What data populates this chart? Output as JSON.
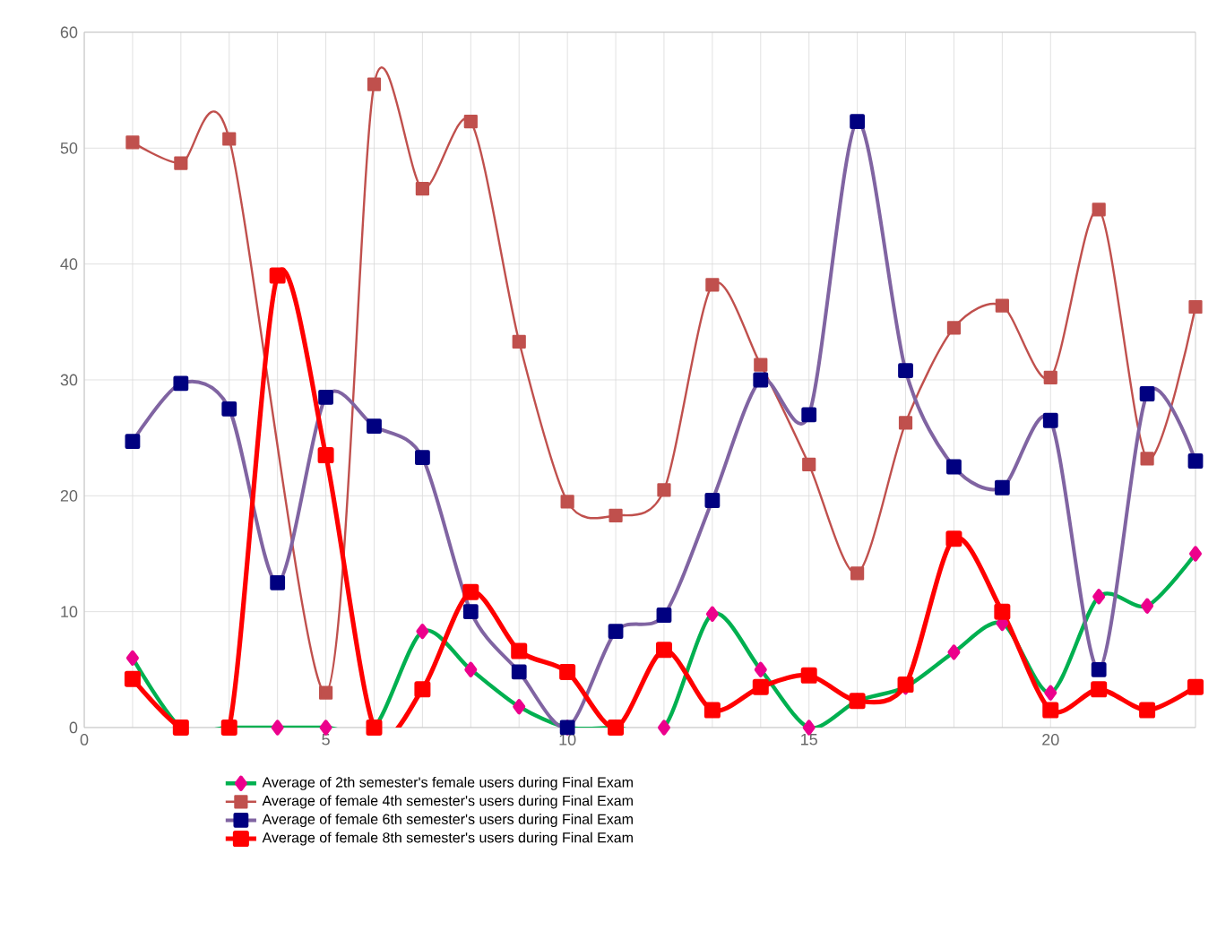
{
  "chart_data": {
    "type": "line",
    "x": [
      1,
      2,
      3,
      4,
      5,
      6,
      7,
      8,
      9,
      10,
      11,
      12,
      13,
      14,
      15,
      16,
      17,
      18,
      19,
      20,
      21,
      22,
      23
    ],
    "xlim": [
      0,
      23
    ],
    "xticks": [
      0,
      5,
      10,
      15,
      20
    ],
    "ylim": [
      0,
      60
    ],
    "yticks": [
      0,
      10,
      20,
      30,
      40,
      50,
      60
    ],
    "grid": true,
    "legend": "bottom",
    "line_style": "solid",
    "series": [
      {
        "name": "Average of 2th semester's  female users during Final Exam",
        "color": "#00b050",
        "marker": "diamond",
        "values": [
          6,
          0,
          0,
          0,
          0,
          0,
          8.3,
          5,
          1.8,
          0,
          0,
          0,
          9.8,
          5,
          0,
          2.3,
          3.5,
          6.5,
          9,
          3,
          11.3,
          10.5,
          15
        ]
      },
      {
        "name": "Average of female 4th semester's users during Final Exam",
        "color": "#c0504d",
        "marker": "square",
        "values": [
          50.5,
          48.7,
          50.8,
          null,
          3,
          55.5,
          46.5,
          52.3,
          33.3,
          19.5,
          18.3,
          20.5,
          38.2,
          31.3,
          22.7,
          13.3,
          26.3,
          34.5,
          36.4,
          30.2,
          44.7,
          23.2,
          36.3
        ]
      },
      {
        "name": "Average of female 6th semester's users during Final Exam",
        "color": "#8064a2",
        "marker": "square",
        "values": [
          24.7,
          29.7,
          27.5,
          12.5,
          28.5,
          26,
          23.3,
          10,
          4.8,
          0,
          8.3,
          9.7,
          19.6,
          30,
          27,
          52.3,
          30.8,
          22.5,
          20.7,
          26.5,
          5,
          28.8,
          23
        ]
      },
      {
        "name": "Average of female 8th semester's users during Final Exam",
        "color": "#ff0000",
        "marker": "square",
        "values": [
          4.2,
          0,
          0,
          39,
          23.5,
          0,
          3.3,
          11.7,
          6.6,
          4.8,
          0,
          6.7,
          1.5,
          3.5,
          4.5,
          2.3,
          3.7,
          16.3,
          10,
          1.5,
          3.3,
          1.5,
          3.5
        ]
      }
    ]
  }
}
